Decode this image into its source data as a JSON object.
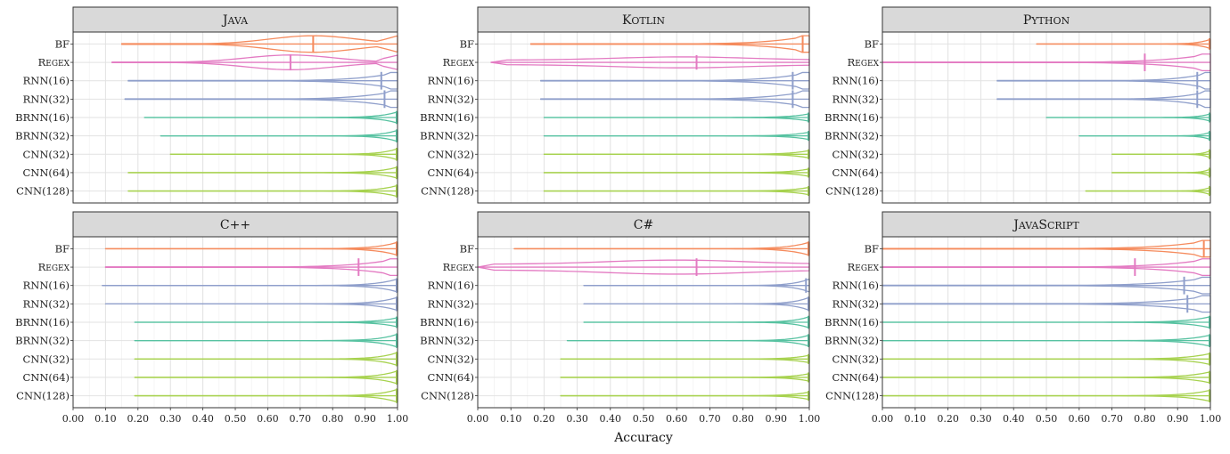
{
  "chart_data": {
    "type": "violin",
    "orientation": "horizontal",
    "xlabel": "Accuracy",
    "xlim": [
      0,
      1
    ],
    "xticks": [
      "0.00",
      "0.10",
      "0.20",
      "0.30",
      "0.40",
      "0.50",
      "0.60",
      "0.70",
      "0.80",
      "0.90",
      "1.00"
    ],
    "categories": [
      "BF",
      "Regex",
      "RNN(16)",
      "RNN(32)",
      "BRNN(16)",
      "BRNN(32)",
      "CNN(32)",
      "CNN(64)",
      "CNN(128)"
    ],
    "colors": {
      "BF": "#f58b5d",
      "Regex": "#e37ac2",
      "RNN(16)": "#8f9fcb",
      "RNN(32)": "#8f9fcb",
      "BRNN(16)": "#57c2a1",
      "BRNN(32)": "#57c2a1",
      "CNN(32)": "#a7d24f",
      "CNN(64)": "#a7d24f",
      "CNN(128)": "#a7d24f"
    },
    "grid": true,
    "layout": "facets 2 rows x 3 columns",
    "facets": [
      {
        "title": "Java",
        "violins": [
          {
            "category": "BF",
            "min": 0.15,
            "max": 1.0,
            "mean": 0.74,
            "shape": "mid",
            "half": 0.45
          },
          {
            "category": "Regex",
            "min": 0.12,
            "max": 1.0,
            "mean": 0.67,
            "shape": "mid",
            "half": 0.4
          },
          {
            "category": "RNN(16)",
            "min": 0.17,
            "max": 1.0,
            "mean": 0.95,
            "shape": "right",
            "half": 0.45
          },
          {
            "category": "RNN(32)",
            "min": 0.16,
            "max": 1.0,
            "mean": 0.96,
            "shape": "right",
            "half": 0.45
          },
          {
            "category": "BRNN(16)",
            "min": 0.22,
            "max": 1.0,
            "mean": 1.0,
            "shape": "tip",
            "half": 0.3
          },
          {
            "category": "BRNN(32)",
            "min": 0.27,
            "max": 1.0,
            "mean": 1.0,
            "shape": "tip",
            "half": 0.3
          },
          {
            "category": "CNN(32)",
            "min": 0.3,
            "max": 1.0,
            "mean": 1.0,
            "shape": "tip",
            "half": 0.3
          },
          {
            "category": "CNN(64)",
            "min": 0.17,
            "max": 1.0,
            "mean": 1.0,
            "shape": "tip",
            "half": 0.3
          },
          {
            "category": "CNN(128)",
            "min": 0.17,
            "max": 1.0,
            "mean": 1.0,
            "shape": "tip",
            "half": 0.3
          }
        ]
      },
      {
        "title": "Kotlin",
        "violins": [
          {
            "category": "BF",
            "min": 0.16,
            "max": 1.0,
            "mean": 0.98,
            "shape": "right",
            "half": 0.45
          },
          {
            "category": "Regex",
            "min": 0.04,
            "max": 1.0,
            "mean": 0.66,
            "shape": "flat",
            "half": 0.35
          },
          {
            "category": "RNN(16)",
            "min": 0.19,
            "max": 1.0,
            "mean": 0.95,
            "shape": "right",
            "half": 0.45
          },
          {
            "category": "RNN(32)",
            "min": 0.19,
            "max": 1.0,
            "mean": 0.95,
            "shape": "right",
            "half": 0.45
          },
          {
            "category": "BRNN(16)",
            "min": 0.2,
            "max": 1.0,
            "mean": 1.0,
            "shape": "tip",
            "half": 0.2
          },
          {
            "category": "BRNN(32)",
            "min": 0.2,
            "max": 1.0,
            "mean": 1.0,
            "shape": "tip",
            "half": 0.2
          },
          {
            "category": "CNN(32)",
            "min": 0.2,
            "max": 1.0,
            "mean": 1.0,
            "shape": "tip",
            "half": 0.2
          },
          {
            "category": "CNN(64)",
            "min": 0.2,
            "max": 1.0,
            "mean": 1.0,
            "shape": "tip",
            "half": 0.2
          },
          {
            "category": "CNN(128)",
            "min": 0.2,
            "max": 1.0,
            "mean": 1.0,
            "shape": "tip",
            "half": 0.2
          }
        ]
      },
      {
        "title": "Python",
        "violins": [
          {
            "category": "BF",
            "min": 0.47,
            "max": 1.0,
            "mean": 1.0,
            "shape": "tip",
            "half": 0.25
          },
          {
            "category": "Regex",
            "min": 0.0,
            "max": 1.0,
            "mean": 0.8,
            "shape": "right",
            "half": 0.45
          },
          {
            "category": "RNN(16)",
            "min": 0.35,
            "max": 1.0,
            "mean": 0.96,
            "shape": "right",
            "half": 0.45
          },
          {
            "category": "RNN(32)",
            "min": 0.35,
            "max": 1.0,
            "mean": 0.96,
            "shape": "right",
            "half": 0.45
          },
          {
            "category": "BRNN(16)",
            "min": 0.5,
            "max": 1.0,
            "mean": 1.0,
            "shape": "tip",
            "half": 0.2
          },
          {
            "category": "BRNN(32)",
            "min": 0.6,
            "max": 1.0,
            "mean": 1.0,
            "shape": "tip",
            "half": 0.2
          },
          {
            "category": "CNN(32)",
            "min": 0.7,
            "max": 1.0,
            "mean": 1.0,
            "shape": "tip",
            "half": 0.2
          },
          {
            "category": "CNN(64)",
            "min": 0.7,
            "max": 1.0,
            "mean": 1.0,
            "shape": "tip",
            "half": 0.2
          },
          {
            "category": "CNN(128)",
            "min": 0.62,
            "max": 1.0,
            "mean": 1.0,
            "shape": "tip",
            "half": 0.2
          }
        ]
      },
      {
        "title": "C++",
        "violins": [
          {
            "category": "BF",
            "min": 0.1,
            "max": 1.0,
            "mean": 1.0,
            "shape": "tip",
            "half": 0.35
          },
          {
            "category": "Regex",
            "min": 0.1,
            "max": 1.0,
            "mean": 0.88,
            "shape": "right",
            "half": 0.45
          },
          {
            "category": "RNN(16)",
            "min": 0.09,
            "max": 1.0,
            "mean": 1.0,
            "shape": "tip",
            "half": 0.35
          },
          {
            "category": "RNN(32)",
            "min": 0.1,
            "max": 1.0,
            "mean": 1.0,
            "shape": "tip",
            "half": 0.35
          },
          {
            "category": "BRNN(16)",
            "min": 0.19,
            "max": 1.0,
            "mean": 1.0,
            "shape": "tip",
            "half": 0.25
          },
          {
            "category": "BRNN(32)",
            "min": 0.19,
            "max": 1.0,
            "mean": 1.0,
            "shape": "tip",
            "half": 0.35
          },
          {
            "category": "CNN(32)",
            "min": 0.19,
            "max": 1.0,
            "mean": 1.0,
            "shape": "tip",
            "half": 0.35
          },
          {
            "category": "CNN(64)",
            "min": 0.19,
            "max": 1.0,
            "mean": 1.0,
            "shape": "tip",
            "half": 0.35
          },
          {
            "category": "CNN(128)",
            "min": 0.19,
            "max": 1.0,
            "mean": 1.0,
            "shape": "tip",
            "half": 0.35
          }
        ]
      },
      {
        "title": "C#",
        "violins": [
          {
            "category": "BF",
            "min": 0.11,
            "max": 1.0,
            "mean": 1.0,
            "shape": "tip",
            "half": 0.35
          },
          {
            "category": "Regex",
            "min": 0.0,
            "max": 1.0,
            "mean": 0.66,
            "shape": "flat",
            "half": 0.45
          },
          {
            "category": "RNN(16)",
            "min": 0.32,
            "max": 1.0,
            "mean": 0.99,
            "shape": "tip",
            "half": 0.35
          },
          {
            "category": "RNN(32)",
            "min": 0.32,
            "max": 1.0,
            "mean": 1.0,
            "shape": "tip",
            "half": 0.35
          },
          {
            "category": "BRNN(16)",
            "min": 0.32,
            "max": 1.0,
            "mean": 1.0,
            "shape": "tip",
            "half": 0.3
          },
          {
            "category": "BRNN(32)",
            "min": 0.27,
            "max": 1.0,
            "mean": 1.0,
            "shape": "tip",
            "half": 0.3
          },
          {
            "category": "CNN(32)",
            "min": 0.25,
            "max": 1.0,
            "mean": 1.0,
            "shape": "tip",
            "half": 0.2
          },
          {
            "category": "CNN(64)",
            "min": 0.25,
            "max": 1.0,
            "mean": 1.0,
            "shape": "tip",
            "half": 0.2
          },
          {
            "category": "CNN(128)",
            "min": 0.25,
            "max": 1.0,
            "mean": 1.0,
            "shape": "tip",
            "half": 0.2
          }
        ]
      },
      {
        "title": "JavaScript",
        "violins": [
          {
            "category": "BF",
            "min": 0.0,
            "max": 1.0,
            "mean": 0.98,
            "shape": "right",
            "half": 0.45
          },
          {
            "category": "Regex",
            "min": 0.0,
            "max": 1.0,
            "mean": 0.77,
            "shape": "right",
            "half": 0.45
          },
          {
            "category": "RNN(16)",
            "min": 0.0,
            "max": 1.0,
            "mean": 0.92,
            "shape": "right",
            "half": 0.45
          },
          {
            "category": "RNN(32)",
            "min": 0.0,
            "max": 1.0,
            "mean": 0.93,
            "shape": "right",
            "half": 0.45
          },
          {
            "category": "BRNN(16)",
            "min": 0.0,
            "max": 1.0,
            "mean": 1.0,
            "shape": "tip",
            "half": 0.3
          },
          {
            "category": "BRNN(32)",
            "min": 0.0,
            "max": 1.0,
            "mean": 1.0,
            "shape": "tip",
            "half": 0.3
          },
          {
            "category": "CNN(32)",
            "min": 0.0,
            "max": 1.0,
            "mean": 1.0,
            "shape": "tip",
            "half": 0.3
          },
          {
            "category": "CNN(64)",
            "min": 0.0,
            "max": 1.0,
            "mean": 1.0,
            "shape": "tip",
            "half": 0.3
          },
          {
            "category": "CNN(128)",
            "min": 0.0,
            "max": 1.0,
            "mean": 1.0,
            "shape": "tip",
            "half": 0.3
          }
        ]
      }
    ]
  }
}
